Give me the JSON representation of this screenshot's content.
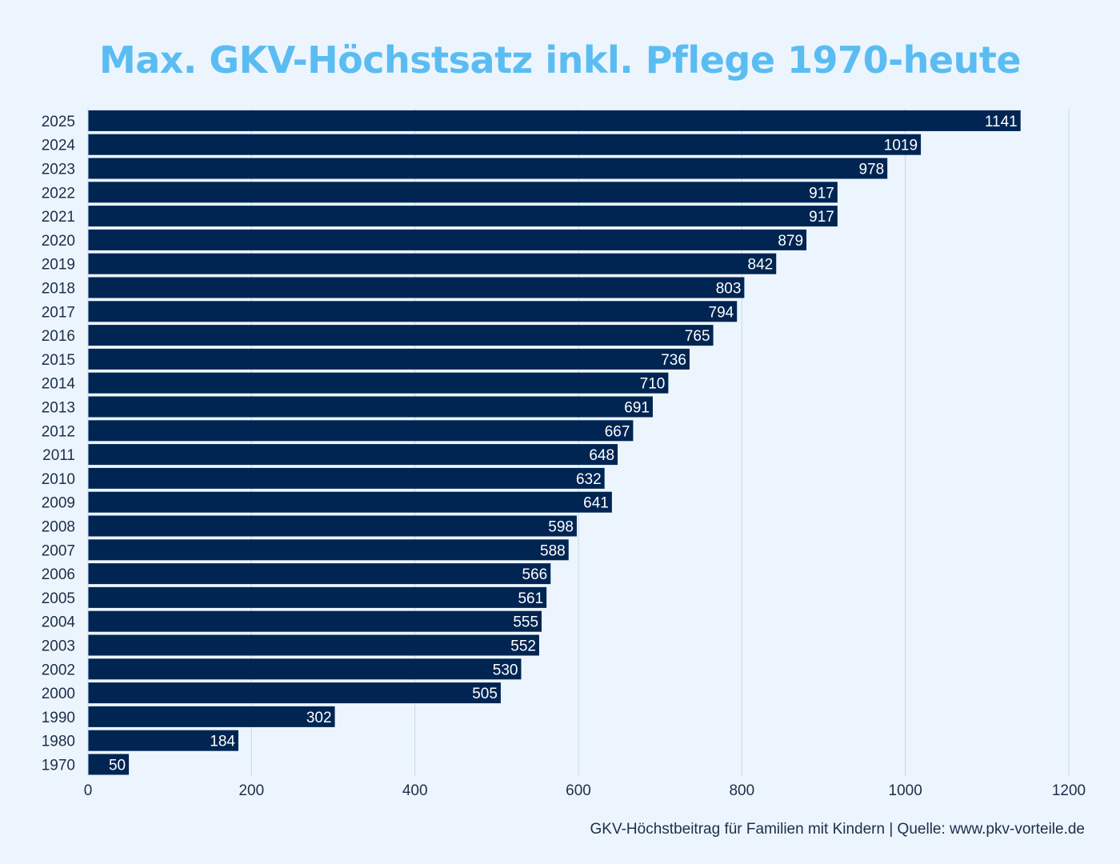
{
  "chart_data": {
    "type": "bar",
    "orientation": "horizontal",
    "title": "Max. GKV-Höchstsatz inkl. Pflege 1970-heute",
    "xlabel": "",
    "ylabel": "",
    "xlim": [
      0,
      1200
    ],
    "ticks": [
      0,
      200,
      400,
      600,
      800,
      1000,
      1200
    ],
    "grid": true,
    "bar_color": "#002552",
    "grid_color": "#c7d6e6",
    "title_color": "#5bbcf2",
    "categories": [
      "2025",
      "2024",
      "2023",
      "2022",
      "2021",
      "2020",
      "2019",
      "2018",
      "2017",
      "2016",
      "2015",
      "2014",
      "2013",
      "2012",
      "2011",
      "2010",
      "2009",
      "2008",
      "2007",
      "2006",
      "2005",
      "2004",
      "2003",
      "2002",
      "2000",
      "1990",
      "1980",
      "1970"
    ],
    "values": [
      1141,
      1019,
      978,
      917,
      917,
      879,
      842,
      803,
      794,
      765,
      736,
      710,
      691,
      667,
      648,
      632,
      641,
      598,
      588,
      566,
      561,
      555,
      552,
      530,
      505,
      302,
      184,
      50
    ]
  },
  "footer": "GKV-Höchstbeitrag für Familien mit Kindern | Quelle: www.pkv-vorteile.de"
}
